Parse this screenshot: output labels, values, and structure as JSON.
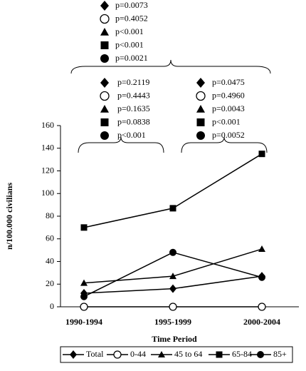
{
  "chart_data": {
    "type": "line",
    "y_label": "n/100.000 civilians",
    "x_label": "Time Period",
    "categories": [
      "1990-1994",
      "1995-1999",
      "2000-2004"
    ],
    "ylim": [
      0,
      160
    ],
    "yticks": [
      0,
      20,
      40,
      60,
      80,
      100,
      120,
      140,
      160
    ],
    "series": [
      {
        "name": "Total",
        "color": "#000000",
        "marker": "diamond",
        "values": [
          12,
          16,
          27
        ]
      },
      {
        "name": "0-44",
        "color": "#000000",
        "marker": "open-circle",
        "values": [
          0,
          0,
          0
        ]
      },
      {
        "name": "45 to 64",
        "color": "#000000",
        "marker": "triangle",
        "values": [
          21,
          27,
          51
        ]
      },
      {
        "name": "65-84",
        "color": "#000000",
        "marker": "square",
        "values": [
          70,
          87,
          135
        ]
      },
      {
        "name": "85+",
        "color": "#000000",
        "marker": "circle",
        "values": [
          9,
          48,
          26
        ]
      }
    ],
    "comparisons": [
      {
        "p_values": [
          "p=0.0073",
          "p=0.4052",
          "p<0.001",
          "p<0.001",
          "p=0.0021"
        ]
      },
      {
        "p_values": [
          "p=0.2119",
          "p=0.4443",
          "p=0.1635",
          "p=0.0838",
          "p<0.001"
        ]
      },
      {
        "p_values": [
          "p=0.0475",
          "p=0.4960",
          "p=0.0043",
          "p<0.001",
          "p=0.0052"
        ]
      }
    ]
  }
}
